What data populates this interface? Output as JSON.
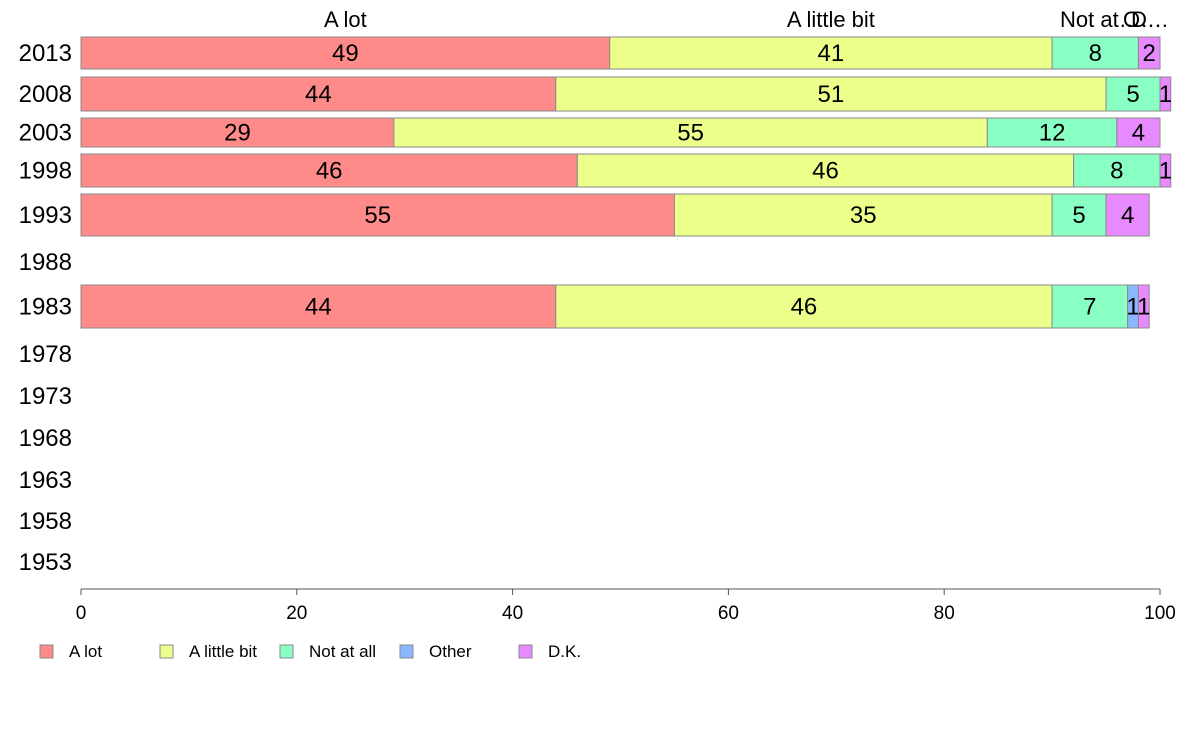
{
  "chart_data": {
    "type": "bar",
    "orientation": "horizontal",
    "stacked": true,
    "categories": [
      "2013",
      "2008",
      "2003",
      "1998",
      "1993",
      "1988",
      "1983",
      "1978",
      "1973",
      "1968",
      "1963",
      "1958",
      "1953"
    ],
    "series": [
      {
        "name": "A lot",
        "color": "#ff8a8a",
        "values": [
          49,
          44,
          29,
          46,
          55,
          null,
          44,
          null,
          null,
          null,
          null,
          null,
          null
        ]
      },
      {
        "name": "A little bit",
        "color": "#ecff8a",
        "values": [
          41,
          51,
          55,
          46,
          35,
          null,
          46,
          null,
          null,
          null,
          null,
          null,
          null
        ]
      },
      {
        "name": "Not at all",
        "color": "#8affc4",
        "values": [
          8,
          5,
          12,
          8,
          5,
          null,
          7,
          null,
          null,
          null,
          null,
          null,
          null
        ]
      },
      {
        "name": "Other",
        "color": "#8ab8ff",
        "values": [
          0,
          0,
          0,
          0,
          0,
          null,
          1,
          null,
          null,
          null,
          null,
          null,
          null
        ]
      },
      {
        "name": "D.K.",
        "color": "#e88aff",
        "values": [
          2,
          1,
          4,
          1,
          4,
          null,
          1,
          null,
          null,
          null,
          null,
          null,
          null
        ]
      }
    ],
    "top_labels": [
      "A lot",
      "A little bit",
      "Not at…",
      "O…",
      "D…"
    ],
    "xlim": [
      0,
      100
    ],
    "xticks": [
      "0",
      "20",
      "40",
      "60",
      "80",
      "100"
    ],
    "grid": false,
    "legend_position": "bottom"
  }
}
